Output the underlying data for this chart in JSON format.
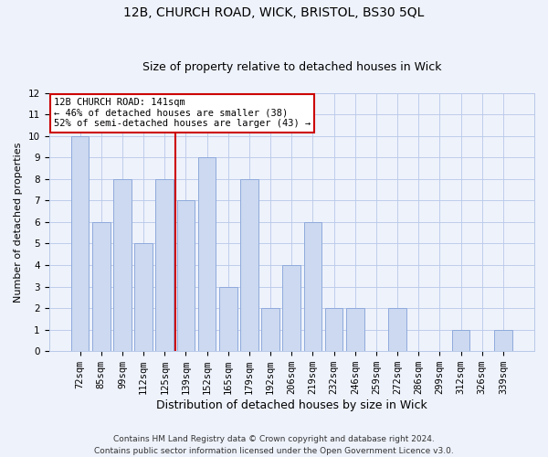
{
  "title1": "12B, CHURCH ROAD, WICK, BRISTOL, BS30 5QL",
  "title2": "Size of property relative to detached houses in Wick",
  "xlabel": "Distribution of detached houses by size in Wick",
  "ylabel": "Number of detached properties",
  "categories": [
    "72sqm",
    "85sqm",
    "99sqm",
    "112sqm",
    "125sqm",
    "139sqm",
    "152sqm",
    "165sqm",
    "179sqm",
    "192sqm",
    "206sqm",
    "219sqm",
    "232sqm",
    "246sqm",
    "259sqm",
    "272sqm",
    "286sqm",
    "299sqm",
    "312sqm",
    "326sqm",
    "339sqm"
  ],
  "values": [
    10,
    6,
    8,
    5,
    8,
    7,
    9,
    3,
    8,
    2,
    4,
    6,
    2,
    2,
    0,
    2,
    0,
    0,
    1,
    0,
    1
  ],
  "bar_color": "#ccd9f0",
  "bar_edge_color": "#8faadc",
  "grid_color": "#b8c8e8",
  "vline_index": 5,
  "vline_color": "#cc0000",
  "annotation_text": "12B CHURCH ROAD: 141sqm\n← 46% of detached houses are smaller (38)\n52% of semi-detached houses are larger (43) →",
  "annotation_box_color": "white",
  "annotation_box_edge": "#cc0000",
  "ylim": [
    0,
    12
  ],
  "yticks": [
    0,
    1,
    2,
    3,
    4,
    5,
    6,
    7,
    8,
    9,
    10,
    11,
    12
  ],
  "footer": "Contains HM Land Registry data © Crown copyright and database right 2024.\nContains public sector information licensed under the Open Government Licence v3.0.",
  "bg_color": "#eef2fb",
  "title1_fontsize": 10,
  "title2_fontsize": 9,
  "xlabel_fontsize": 9,
  "ylabel_fontsize": 8,
  "tick_fontsize": 7.5,
  "footer_fontsize": 6.5,
  "annot_fontsize": 7.5
}
